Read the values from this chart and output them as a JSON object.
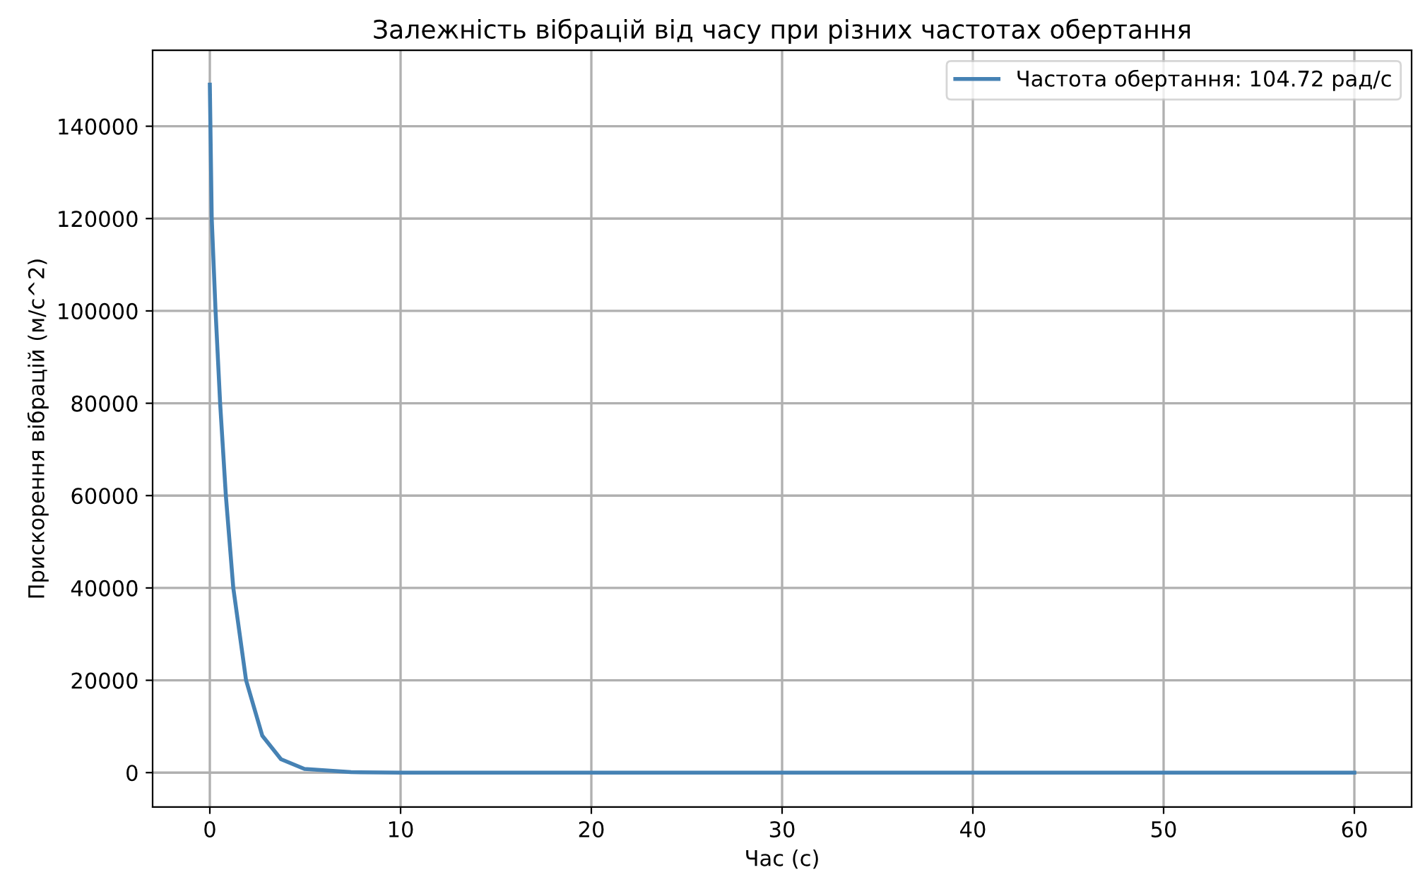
{
  "chart_data": {
    "type": "line",
    "title": "Залежність вібрацій від часу при різних частотах обертання",
    "xlabel": "Час (с)",
    "ylabel": "Прискорення вібрацій (м/с^2)",
    "series": [
      {
        "name": "Частота обертання: 104.72 рад/с",
        "color": "#4682b4",
        "x": [
          0,
          0.1,
          0.3,
          0.54,
          0.84,
          1.23,
          1.9,
          2.75,
          3.73,
          4.96,
          7.4,
          10,
          20,
          30,
          40,
          50,
          60
        ],
        "values": [
          149000,
          120000,
          100000,
          80000,
          60000,
          40000,
          20000,
          8000,
          2900,
          800,
          100,
          0,
          0,
          0,
          0,
          0,
          0
        ]
      }
    ],
    "xlim": [
      -3,
      63
    ],
    "xticks": [
      0,
      10,
      20,
      30,
      40,
      50,
      60
    ],
    "ylim": [
      -7450,
      156450
    ],
    "yticks": [
      0,
      20000,
      40000,
      60000,
      80000,
      100000,
      120000,
      140000
    ],
    "grid": true,
    "legend": "top right",
    "line_style": "solid",
    "marker": "none"
  }
}
